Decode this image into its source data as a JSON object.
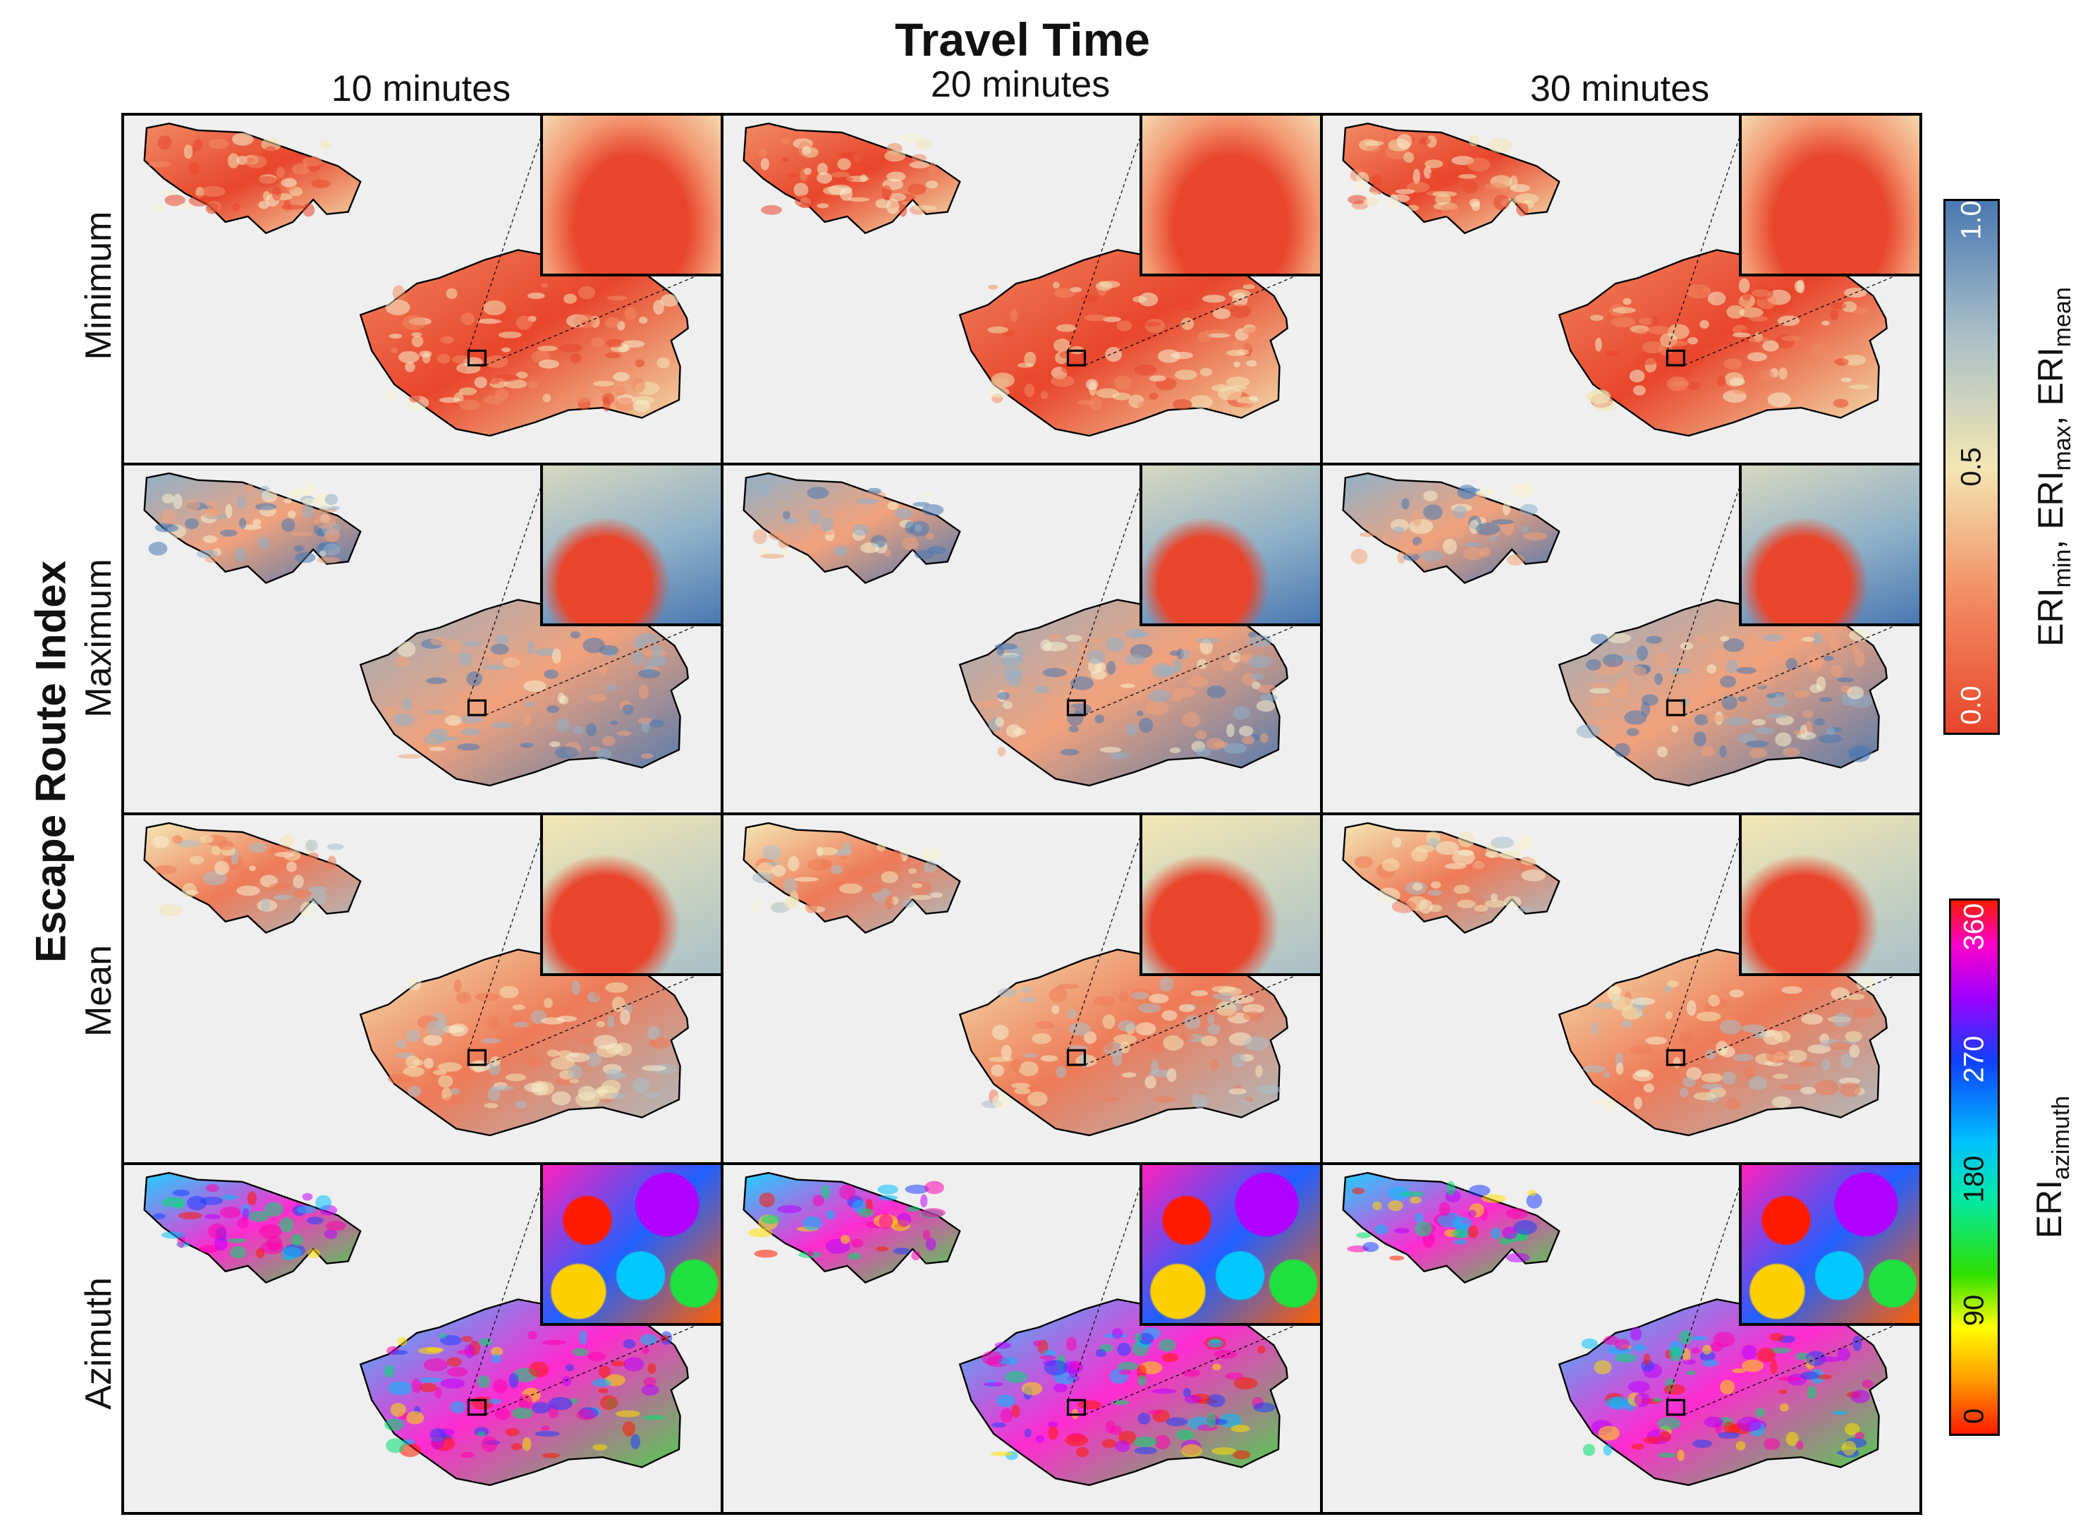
{
  "figure": {
    "title": "Travel Time",
    "y_title": "Escape Route Index",
    "columns": [
      "10 minutes",
      "20 minutes",
      "30 minutes"
    ],
    "rows": [
      "Minimum",
      "Maximum",
      "Mean",
      "Azimuth"
    ],
    "colors": {
      "eri_low": "#e8452c",
      "eri_mid": "#f3e6b4",
      "eri_high": "#4a78b2",
      "background": "#efefef"
    },
    "colorbar_eri": {
      "ticks": [
        "0.0",
        "0.5",
        "1.0"
      ],
      "label_parts": [
        "ERI",
        "min",
        ", ERI",
        "max",
        ", ERI",
        "mean"
      ]
    },
    "colorbar_azimuth": {
      "ticks": [
        "0",
        "90",
        "180",
        "270",
        "360"
      ],
      "label_parts": [
        "ERI",
        "azimuth"
      ]
    }
  }
}
